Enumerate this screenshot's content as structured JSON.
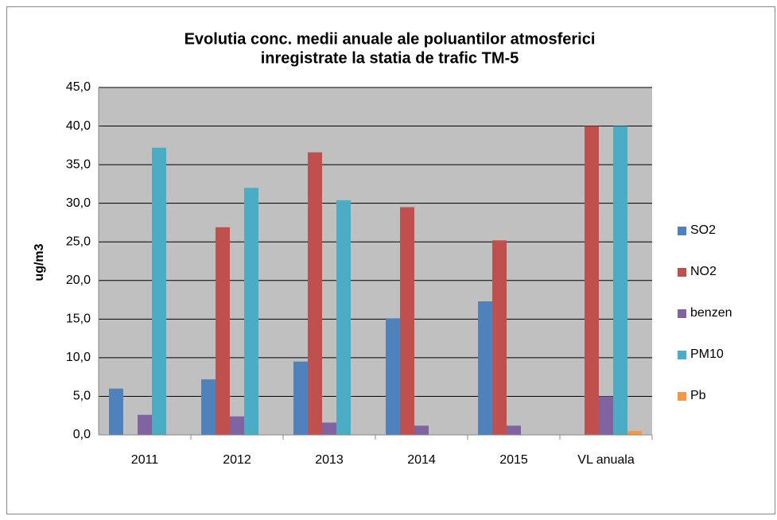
{
  "chart_data": {
    "type": "bar",
    "title": [
      "Evolutia conc. medii anuale ale poluantilor atmosferici",
      "inregistrate la statia de trafic TM-5"
    ],
    "y_label": "ug/m3",
    "categories": [
      "2011",
      "2012",
      "2013",
      "2014",
      "2015",
      "VL anuala"
    ],
    "series": [
      {
        "name": "SO2",
        "color": "#4f81bd",
        "values": [
          6.0,
          7.2,
          9.5,
          15.1,
          17.3,
          null
        ]
      },
      {
        "name": "NO2",
        "color": "#c0504d",
        "values": [
          null,
          26.9,
          36.6,
          29.5,
          25.2,
          40.0
        ]
      },
      {
        "name": "benzen",
        "color": "#8064a2",
        "values": [
          2.6,
          2.4,
          1.6,
          1.2,
          1.2,
          5.0
        ]
      },
      {
        "name": "PM10",
        "color": "#4bacc6",
        "values": [
          37.2,
          32.0,
          30.4,
          null,
          null,
          40.0
        ]
      },
      {
        "name": "Pb",
        "color": "#f79646",
        "values": [
          null,
          null,
          null,
          null,
          null,
          0.5
        ]
      }
    ],
    "ylim": [
      0,
      45
    ],
    "yticks": [
      {
        "value": 0,
        "label": "0,0"
      },
      {
        "value": 5,
        "label": "5,0"
      },
      {
        "value": 10,
        "label": "10,0"
      },
      {
        "value": 15,
        "label": "15,0"
      },
      {
        "value": 20,
        "label": "20,0"
      },
      {
        "value": 25,
        "label": "25,0"
      },
      {
        "value": 30,
        "label": "30,0"
      },
      {
        "value": 35,
        "label": "35,0"
      },
      {
        "value": 40,
        "label": "40,0"
      },
      {
        "value": 45,
        "label": "45,0"
      }
    ],
    "grid": true,
    "legend": "right"
  }
}
